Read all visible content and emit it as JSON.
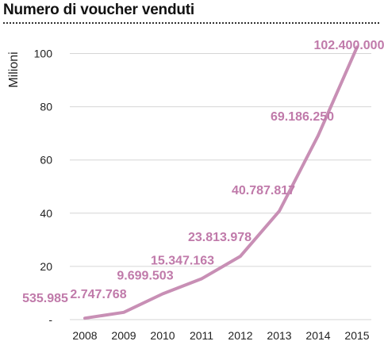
{
  "title": "Numero di voucher venduti",
  "chart_data": {
    "type": "line",
    "title": "Numero di voucher venduti",
    "xlabel": "",
    "ylabel": "Milioni",
    "x": [
      "2008",
      "2009",
      "2010",
      "2011",
      "2012",
      "2013",
      "2014",
      "2015"
    ],
    "series": [
      {
        "values": [
          0.535985,
          2.747768,
          9.699503,
          15.347163,
          23.813978,
          40.787817,
          69.18625,
          102.4
        ],
        "labels": [
          "535.985",
          "2.747.768",
          "9.699.503",
          "15.347.163",
          "23.813.978",
          "40.787.817",
          "69.186.250",
          "102.400.000"
        ]
      }
    ],
    "ylim": [
      0,
      105
    ],
    "yticks": [
      0,
      20,
      40,
      60,
      80,
      100
    ],
    "ytick_labels": [
      "-",
      "20",
      "40",
      "60",
      "80",
      "100"
    ],
    "grid": true,
    "legend": "none",
    "colors": {
      "line": "#c88fb5",
      "labels": "#c07aaa",
      "grid": "#d6d6d6"
    }
  }
}
